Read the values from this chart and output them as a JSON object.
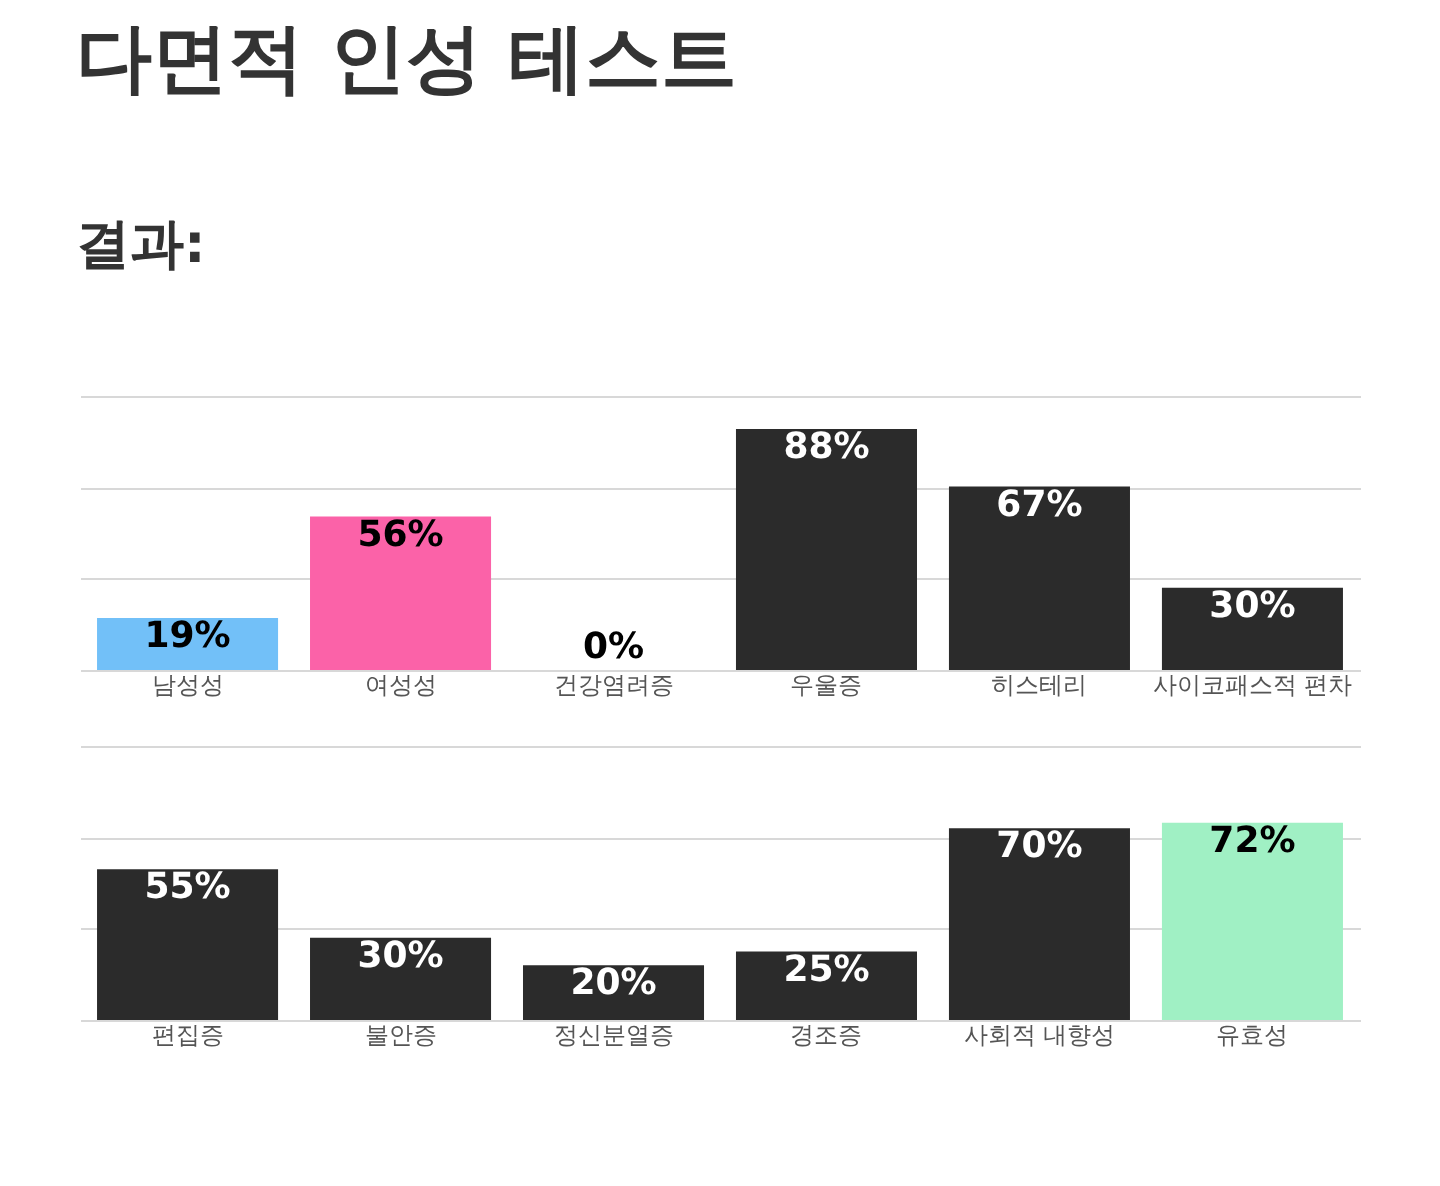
{
  "chart_data": [
    {
      "type": "bar",
      "title": "다면적 인성 테스트",
      "subtitle": "결과:",
      "categories": [
        "남성성",
        "여성성",
        "건강염려증",
        "우울증",
        "히스테리",
        "사이코패스적 편차"
      ],
      "values": [
        19,
        56,
        0,
        88,
        67,
        30
      ],
      "value_labels": [
        "19%",
        "56%",
        "0%",
        "88%",
        "67%",
        "30%"
      ],
      "colors": [
        "#72c0f8",
        "#fb62a8",
        "#2b2b2b",
        "#2b2b2b",
        "#2b2b2b",
        "#2b2b2b"
      ],
      "ylim": [
        0,
        100
      ],
      "yticks": [
        0,
        {
          "value": 33.3,
          "label": null
        },
        {
          "value": 66.7,
          "label": null
        },
        {
          "value": 100,
          "label": null
        }
      ],
      "grid": "y",
      "tick_labels": "x"
    },
    {
      "type": "bar",
      "categories": [
        "편집증",
        "불안증",
        "정신분열증",
        "경조증",
        "사회적 내향성",
        "유효성"
      ],
      "values": [
        55,
        30,
        20,
        25,
        70,
        72
      ],
      "value_labels": [
        "55%",
        "30%",
        "20%",
        "25%",
        "70%",
        "72%"
      ],
      "colors": [
        "#2b2b2b",
        "#2b2b2b",
        "#2b2b2b",
        "#2b2b2b",
        "#2b2b2b",
        "#a0f0c4"
      ],
      "ylim": [
        0,
        100
      ],
      "yticks": [
        0,
        {
          "value": 33.3,
          "label": null
        },
        {
          "value": 66.7,
          "label": null
        },
        {
          "value": 100,
          "label": null
        }
      ],
      "grid": "y",
      "tick_labels": "x"
    }
  ]
}
